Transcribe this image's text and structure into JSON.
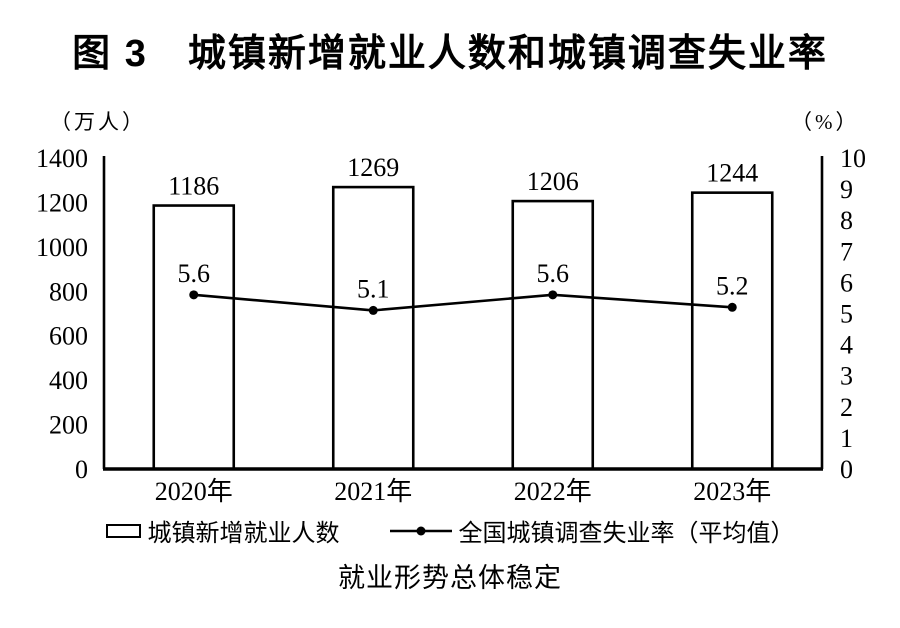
{
  "title": "图 3　城镇新增就业人数和城镇调查失业率",
  "units": {
    "left": "（万人）",
    "right": "（%）"
  },
  "chart_data": {
    "type": "bar",
    "title": "图 3　城镇新增就业人数和城镇调查失业率",
    "categories": [
      "2020年",
      "2021年",
      "2022年",
      "2023年"
    ],
    "series": [
      {
        "name": "城镇新增就业人数",
        "type": "bar",
        "axis": "left",
        "values": [
          1186,
          1269,
          1206,
          1244
        ]
      },
      {
        "name": "全国城镇调查失业率（平均值）",
        "type": "line",
        "axis": "right",
        "values": [
          5.6,
          5.1,
          5.6,
          5.2
        ]
      }
    ],
    "left_axis": {
      "unit": "（万人）",
      "min": 0,
      "max": 1400,
      "step": 200,
      "ticks": [
        "0",
        "200",
        "400",
        "600",
        "800",
        "1000",
        "1200",
        "1400"
      ]
    },
    "right_axis": {
      "unit": "（%）",
      "min": 0,
      "max": 10,
      "step": 1,
      "ticks": [
        "0",
        "1",
        "2",
        "3",
        "4",
        "5",
        "6",
        "7",
        "8",
        "9",
        "10"
      ]
    },
    "grid": false,
    "legend_position": "bottom",
    "bar_fill": "#ffffff",
    "stroke_color": "#000000"
  },
  "legend": {
    "items": [
      {
        "label": "城镇新增就业人数",
        "swatch": "bar-outline"
      },
      {
        "label": "全国城镇调查失业率（平均值）",
        "swatch": "line-dot"
      }
    ]
  },
  "caption": "就业形势总体稳定",
  "colors": {
    "foreground": "#000000",
    "background": "#ffffff",
    "bar_fill": "#ffffff"
  }
}
